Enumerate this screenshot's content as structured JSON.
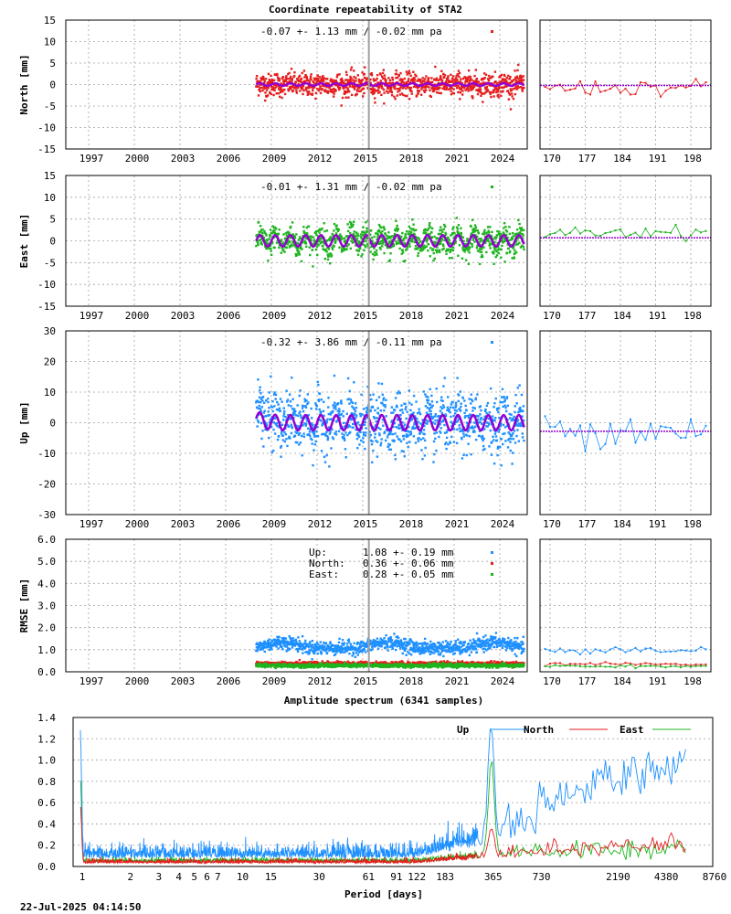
{
  "title": "Coordinate repeatability of STA2",
  "timestamp": "22-Jul-2025 04:14:50",
  "colors": {
    "up": "#1e90ff",
    "north": "#e51e1e",
    "east": "#1eb41e",
    "model": "#9400d3",
    "break": "#a0a0a0"
  },
  "chart_data": [
    {
      "type": "scatter",
      "panel": "north",
      "ylabel": "North [mm]",
      "ylim": [
        -15,
        15
      ],
      "yticks": [
        "15",
        "10",
        "5",
        "0",
        "-5",
        "-10",
        "-15"
      ],
      "xlim": [
        1995.5,
        2025.8
      ],
      "xticks": [
        "1997",
        "2000",
        "2003",
        "2006",
        "2009",
        "2012",
        "2015",
        "2018",
        "2021",
        "2024"
      ],
      "annotation": "-0.07 +- 1.13 mm / -0.02 mm pa",
      "data_range": [
        2008.0,
        2025.6
      ],
      "scatter_sigma": 1.13,
      "seasonal_amplitude": 0.3,
      "offset": 0.0,
      "break_epoch": 2015.4,
      "zoom_xticks": [
        "170",
        "177",
        "184",
        "191",
        "198"
      ],
      "zoom_xlim": [
        168,
        202
      ]
    },
    {
      "type": "scatter",
      "panel": "east",
      "ylabel": "East [mm]",
      "ylim": [
        -15,
        15
      ],
      "yticks": [
        "15",
        "10",
        "5",
        "0",
        "-5",
        "-10",
        "-15"
      ],
      "xlim": [
        1995.5,
        2025.8
      ],
      "xticks": [
        "1997",
        "2000",
        "2003",
        "2006",
        "2009",
        "2012",
        "2015",
        "2018",
        "2021",
        "2024"
      ],
      "annotation": "-0.01 +- 1.31 mm / -0.02 mm pa",
      "data_range": [
        2008.0,
        2025.6
      ],
      "scatter_sigma": 1.31,
      "seasonal_amplitude": 1.3,
      "offset": 0.0,
      "break_epoch": 2015.4,
      "zoom_xticks": [
        "170",
        "177",
        "184",
        "191",
        "198"
      ],
      "zoom_xlim": [
        168,
        202
      ]
    },
    {
      "type": "scatter",
      "panel": "up",
      "ylabel": "Up [mm]",
      "ylim": [
        -30,
        30
      ],
      "yticks": [
        "30",
        "20",
        "10",
        "0",
        "-10",
        "-20",
        "-30"
      ],
      "xlim": [
        1995.5,
        2025.8
      ],
      "xticks": [
        "1997",
        "2000",
        "2003",
        "2006",
        "2009",
        "2012",
        "2015",
        "2018",
        "2021",
        "2024"
      ],
      "annotation": "-0.32 +- 3.86 mm / -0.11 mm pa",
      "data_range": [
        2008.0,
        2025.6
      ],
      "scatter_sigma": 3.86,
      "seasonal_amplitude": 2.5,
      "offset": 0.0,
      "break_epoch": 2015.4,
      "zoom_xticks": [
        "170",
        "177",
        "184",
        "191",
        "198"
      ],
      "zoom_xlim": [
        168,
        202
      ]
    },
    {
      "type": "scatter",
      "panel": "rmse",
      "ylabel": "RMSE [mm]",
      "ylim": [
        0,
        6
      ],
      "yticks": [
        "6.0",
        "5.0",
        "4.0",
        "3.0",
        "2.0",
        "1.0",
        "0.0"
      ],
      "xlim": [
        1995.5,
        2025.8
      ],
      "xticks": [
        "1997",
        "2000",
        "2003",
        "2006",
        "2009",
        "2012",
        "2015",
        "2018",
        "2021",
        "2024"
      ],
      "legend": [
        {
          "label": "Up:",
          "value": "1.08 +- 0.19 mm",
          "series": "up",
          "mean": 1.08,
          "sd": 0.19
        },
        {
          "label": "North:",
          "value": "0.36 +- 0.06 mm",
          "series": "north",
          "mean": 0.36,
          "sd": 0.06
        },
        {
          "label": "East:",
          "value": "0.28 +- 0.05 mm",
          "series": "east",
          "mean": 0.28,
          "sd": 0.05
        }
      ],
      "break_epoch": 2015.4,
      "zoom_xticks": [
        "170",
        "177",
        "184",
        "191",
        "198"
      ],
      "zoom_xlim": [
        168,
        202
      ]
    },
    {
      "type": "line",
      "panel": "spectrum",
      "title": "Amplitude spectrum (6341 samples)",
      "xlabel": "Period [days]",
      "xscale": "log",
      "xlim": [
        0.9,
        8760
      ],
      "xticks": [
        "1",
        "2",
        "3",
        "4",
        "5",
        "6",
        "7",
        "10",
        "15",
        "30",
        "61",
        "91",
        "122",
        "183",
        "365",
        "730",
        "2190",
        "4380",
        "8760"
      ],
      "xtick_values": [
        1,
        2,
        3,
        4,
        5,
        6,
        7,
        10,
        15,
        30,
        61,
        91,
        122,
        183,
        365,
        730,
        2190,
        4380,
        8760
      ],
      "ylim": [
        0,
        1.4
      ],
      "yticks": [
        "1.4",
        "1.2",
        "1.0",
        "0.8",
        "0.6",
        "0.4",
        "0.2",
        "0.0"
      ],
      "legend_position": "top-right",
      "series": [
        {
          "name": "Up",
          "key": "up",
          "peaks": [
            [
              1,
              1.2
            ],
            [
              365,
              1.16
            ],
            [
              4380,
              1.2
            ],
            [
              6000,
              1.0
            ]
          ]
        },
        {
          "name": "North",
          "key": "north",
          "peaks": [
            [
              1,
              0.55
            ],
            [
              365,
              0.3
            ],
            [
              6000,
              0.4
            ]
          ]
        },
        {
          "name": "East",
          "key": "east",
          "peaks": [
            [
              1,
              0.8
            ],
            [
              365,
              0.92
            ],
            [
              6000,
              0.33
            ]
          ]
        }
      ]
    }
  ]
}
